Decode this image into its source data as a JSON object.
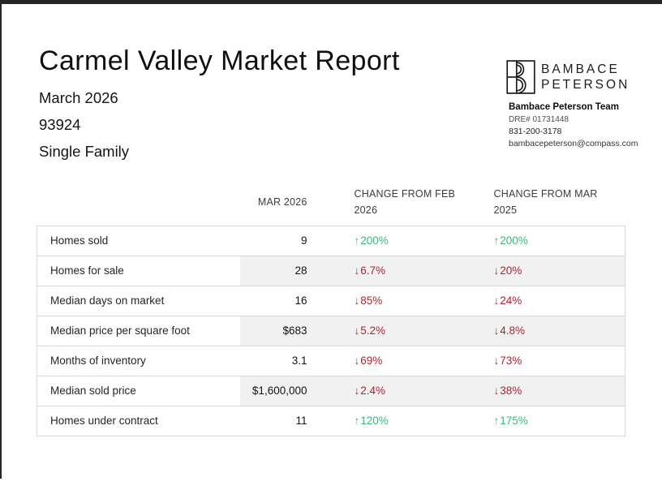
{
  "window": {
    "edge_color": "#262626"
  },
  "report": {
    "title": "Carmel Valley Market Report",
    "period": "March 2026",
    "zip": "93924",
    "property_type": "Single Family"
  },
  "brand": {
    "logo_line1": "BAMBACE",
    "logo_line2": "PETERSON",
    "team_name": "Bambace Peterson Team",
    "dre": "DRE# 01731448",
    "phone": "831-200-3178",
    "email": "bambacepeterson@compass.com"
  },
  "table": {
    "headers": {
      "metric": "",
      "current": "MAR 2026",
      "change_month": "CHANGE FROM FEB 2026",
      "change_year": "CHANGE FROM MAR 2025"
    },
    "rows": [
      {
        "label": "Homes sold",
        "value": "9",
        "change_month": {
          "dir": "up",
          "text": "200%"
        },
        "change_year": {
          "dir": "up",
          "text": "200%"
        }
      },
      {
        "label": "Homes for sale",
        "value": "28",
        "change_month": {
          "dir": "down",
          "text": "6.7%"
        },
        "change_year": {
          "dir": "down",
          "text": "20%"
        }
      },
      {
        "label": "Median days on market",
        "value": "16",
        "change_month": {
          "dir": "down",
          "text": "85%"
        },
        "change_year": {
          "dir": "down",
          "text": "24%"
        }
      },
      {
        "label": "Median price per square foot",
        "value": "$683",
        "change_month": {
          "dir": "down",
          "text": "5.2%"
        },
        "change_year": {
          "dir": "down",
          "text": "4.8%"
        }
      },
      {
        "label": "Months of inventory",
        "value": "3.1",
        "change_month": {
          "dir": "down",
          "text": "69%"
        },
        "change_year": {
          "dir": "down",
          "text": "73%"
        }
      },
      {
        "label": "Median sold price",
        "value": "$1,600,000",
        "change_month": {
          "dir": "down",
          "text": "2.4%"
        },
        "change_year": {
          "dir": "down",
          "text": "38%"
        }
      },
      {
        "label": "Homes under contract",
        "value": "11",
        "change_month": {
          "dir": "up",
          "text": "120%"
        },
        "change_year": {
          "dir": "up",
          "text": "175%"
        }
      }
    ]
  },
  "icons": {
    "up_arrow": "↑",
    "down_arrow": "↓"
  },
  "colors": {
    "positive": "#3eb77e",
    "negative": "#b3212f",
    "stripe": "#f1f1f1",
    "border": "#d9d9d9"
  }
}
